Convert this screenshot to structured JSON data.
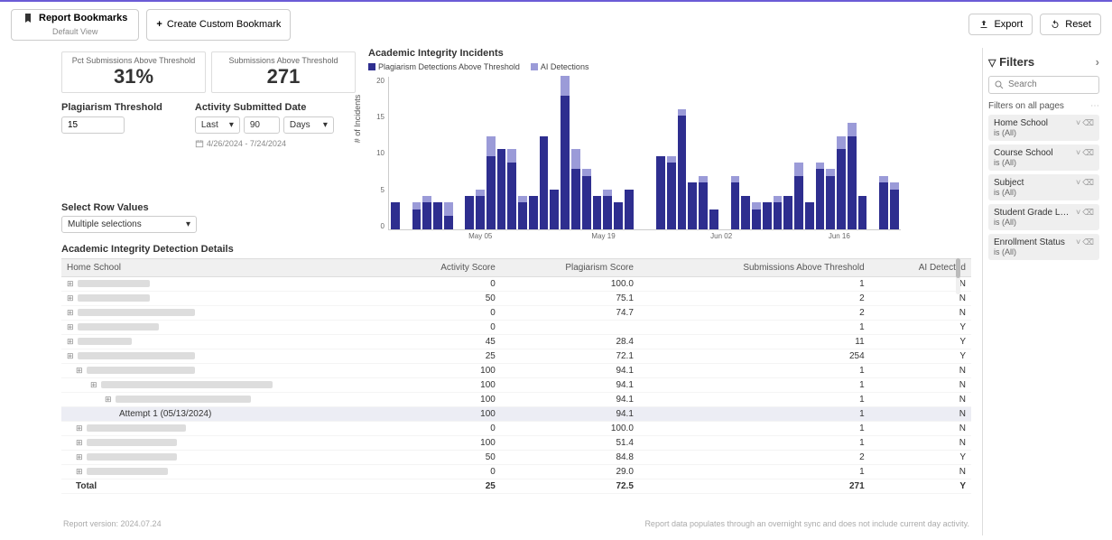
{
  "toolbar": {
    "bookmarks_label": "Report Bookmarks",
    "bookmarks_sub": "Default View",
    "create_bookmark": "Create Custom Bookmark",
    "export": "Export",
    "reset": "Reset"
  },
  "kpi": {
    "pct_label": "Pct Submissions Above Threshold",
    "pct_value": "31%",
    "count_label": "Submissions Above Threshold",
    "count_value": "271"
  },
  "controls": {
    "threshold_label": "Plagiarism Threshold",
    "threshold_value": "15",
    "date_label": "Activity Submitted Date",
    "date_mode": "Last",
    "date_num": "90",
    "date_unit": "Days",
    "date_range": "4/26/2024 - 7/24/2024"
  },
  "chart": {
    "title": "Academic Integrity Incidents",
    "legend1": "Plagiarism Detections Above Threshold",
    "legend2": "AI Detections",
    "color1": "#2e2e8f",
    "color2": "#9b9bd8",
    "y_label": "# of Incidents",
    "y_max": 23,
    "y_ticks": [
      "20",
      "15",
      "10",
      "5",
      "0"
    ],
    "x_ticks": [
      {
        "pos": 18,
        "label": "May 05"
      },
      {
        "pos": 42,
        "label": "May 19"
      },
      {
        "pos": 65,
        "label": "Jun 02"
      },
      {
        "pos": 88,
        "label": "Jun 16"
      }
    ],
    "bars": [
      {
        "p": 4,
        "a": 0
      },
      {
        "p": 0,
        "a": 0
      },
      {
        "p": 3,
        "a": 1
      },
      {
        "p": 4,
        "a": 1
      },
      {
        "p": 4,
        "a": 0
      },
      {
        "p": 2,
        "a": 2
      },
      {
        "p": 0,
        "a": 0
      },
      {
        "p": 5,
        "a": 0
      },
      {
        "p": 5,
        "a": 1
      },
      {
        "p": 11,
        "a": 3
      },
      {
        "p": 12,
        "a": 0
      },
      {
        "p": 10,
        "a": 2
      },
      {
        "p": 4,
        "a": 1
      },
      {
        "p": 5,
        "a": 0
      },
      {
        "p": 14,
        "a": 0
      },
      {
        "p": 6,
        "a": 0
      },
      {
        "p": 20,
        "a": 3
      },
      {
        "p": 9,
        "a": 3
      },
      {
        "p": 8,
        "a": 1
      },
      {
        "p": 5,
        "a": 0
      },
      {
        "p": 5,
        "a": 1
      },
      {
        "p": 4,
        "a": 0
      },
      {
        "p": 6,
        "a": 0
      },
      {
        "p": 0,
        "a": 0
      },
      {
        "p": 0,
        "a": 0
      },
      {
        "p": 11,
        "a": 0
      },
      {
        "p": 10,
        "a": 1
      },
      {
        "p": 17,
        "a": 1
      },
      {
        "p": 7,
        "a": 0
      },
      {
        "p": 7,
        "a": 1
      },
      {
        "p": 3,
        "a": 0
      },
      {
        "p": 0,
        "a": 0
      },
      {
        "p": 7,
        "a": 1
      },
      {
        "p": 5,
        "a": 0
      },
      {
        "p": 3,
        "a": 1
      },
      {
        "p": 4,
        "a": 0
      },
      {
        "p": 4,
        "a": 1
      },
      {
        "p": 5,
        "a": 0
      },
      {
        "p": 8,
        "a": 2
      },
      {
        "p": 4,
        "a": 0
      },
      {
        "p": 9,
        "a": 1
      },
      {
        "p": 8,
        "a": 1
      },
      {
        "p": 12,
        "a": 2
      },
      {
        "p": 14,
        "a": 2
      },
      {
        "p": 5,
        "a": 0
      },
      {
        "p": 0,
        "a": 0
      },
      {
        "p": 7,
        "a": 1
      },
      {
        "p": 6,
        "a": 1
      }
    ]
  },
  "row_values": {
    "label": "Select Row Values",
    "value": "Multiple selections"
  },
  "table": {
    "title": "Academic Integrity Detection Details",
    "headers": [
      "Home School",
      "Activity Score",
      "Plagiarism Score",
      "Submissions Above Threshold",
      "AI Detected"
    ],
    "rows": [
      {
        "indent": 0,
        "blur": 80,
        "score": "0",
        "plag": "100.0",
        "subs": "1",
        "ai": "N"
      },
      {
        "indent": 0,
        "blur": 80,
        "score": "50",
        "plag": "75.1",
        "subs": "2",
        "ai": "N"
      },
      {
        "indent": 0,
        "blur": 130,
        "score": "0",
        "plag": "74.7",
        "subs": "2",
        "ai": "N"
      },
      {
        "indent": 0,
        "blur": 90,
        "score": "0",
        "plag": "",
        "subs": "1",
        "ai": "Y"
      },
      {
        "indent": 0,
        "blur": 60,
        "score": "45",
        "plag": "28.4",
        "subs": "11",
        "ai": "Y"
      },
      {
        "indent": 0,
        "blur": 130,
        "score": "25",
        "plag": "72.1",
        "subs": "254",
        "ai": "Y"
      },
      {
        "indent": 1,
        "blur": 120,
        "score": "100",
        "plag": "94.1",
        "subs": "1",
        "ai": "N"
      },
      {
        "indent": 2,
        "blur": 190,
        "score": "100",
        "plag": "94.1",
        "subs": "1",
        "ai": "N"
      },
      {
        "indent": 3,
        "blur": 150,
        "score": "100",
        "plag": "94.1",
        "subs": "1",
        "ai": "N"
      },
      {
        "indent": 4,
        "text": "Attempt 1 (05/13/2024)",
        "score": "100",
        "plag": "94.1",
        "subs": "1",
        "ai": "N",
        "highlight": true,
        "noicon": true
      },
      {
        "indent": 1,
        "blur": 110,
        "score": "0",
        "plag": "100.0",
        "subs": "1",
        "ai": "N"
      },
      {
        "indent": 1,
        "blur": 100,
        "score": "100",
        "plag": "51.4",
        "subs": "1",
        "ai": "N"
      },
      {
        "indent": 1,
        "blur": 100,
        "score": "50",
        "plag": "84.8",
        "subs": "2",
        "ai": "Y"
      },
      {
        "indent": 1,
        "blur": 90,
        "score": "0",
        "plag": "29.0",
        "subs": "1",
        "ai": "N"
      }
    ],
    "total": {
      "label": "Total",
      "score": "25",
      "plag": "72.5",
      "subs": "271",
      "ai": "Y"
    }
  },
  "footer": {
    "left": "Report version: 2024.07.24",
    "right": "Report data populates through an overnight sync and does not include current day activity."
  },
  "filters": {
    "title": "Filters",
    "search_placeholder": "Search",
    "section": "Filters on all pages",
    "items": [
      {
        "name": "Home School",
        "val": "is (All)"
      },
      {
        "name": "Course School",
        "val": "is (All)"
      },
      {
        "name": "Subject",
        "val": "is (All)"
      },
      {
        "name": "Student Grade L…",
        "val": "is (All)"
      },
      {
        "name": "Enrollment Status",
        "val": "is (All)"
      }
    ]
  }
}
